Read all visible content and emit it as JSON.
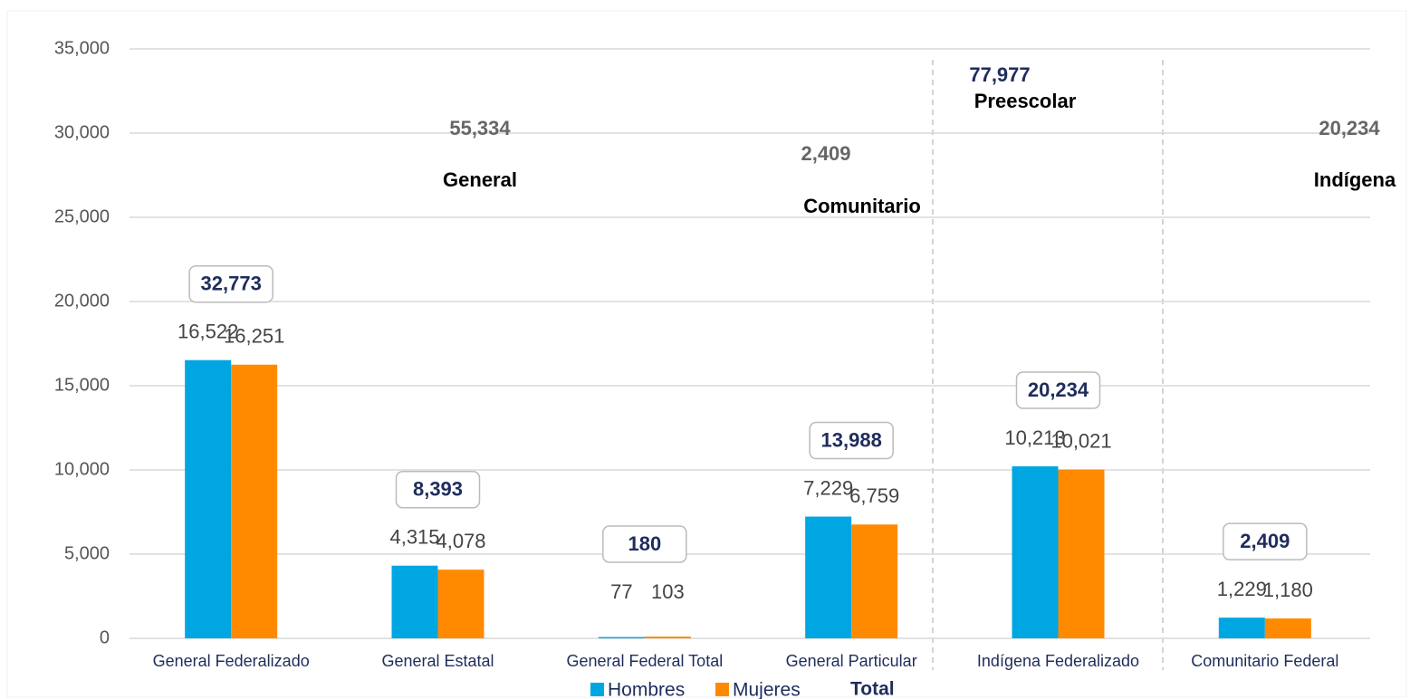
{
  "chart_data": {
    "type": "bar",
    "categories": [
      "General Federalizado",
      "General Estatal",
      "General Federal Total",
      "General Particular",
      "Indígena Federalizado",
      "Comunitario Federal"
    ],
    "series": [
      {
        "name": "Hombres",
        "color": "#00a6e2",
        "values": [
          16522,
          4315,
          77,
          7229,
          10213,
          1229
        ],
        "value_labels": [
          "16,522",
          "4,315",
          "77",
          "7,229",
          "10,213",
          "1,229"
        ]
      },
      {
        "name": "Mujeres",
        "color": "#ff8a00",
        "values": [
          16251,
          4078,
          103,
          6759,
          10021,
          1180
        ],
        "value_labels": [
          "16,251",
          "4,078",
          "103",
          "6,759",
          "10,021",
          "1,180"
        ]
      }
    ],
    "totals": {
      "name": "Total",
      "color": "#1f2d5c",
      "values": [
        32773,
        8393,
        180,
        13988,
        20234,
        2409
      ],
      "value_labels": [
        "32,773",
        "8,393",
        "180",
        "13,988",
        "20,234",
        "2,409"
      ]
    },
    "annotations": [
      {
        "value": 55334,
        "label": "55,334",
        "text": "General"
      },
      {
        "value": 2409,
        "label": "2,409",
        "text": "Comunitario"
      },
      {
        "value": 77977,
        "label": "77,977",
        "text": "Preescolar"
      },
      {
        "value": 20234,
        "label": "20,234",
        "text": "Indígena"
      }
    ],
    "ylim": [
      0,
      35000
    ],
    "yticks": [
      {
        "value": 0,
        "label": "0"
      },
      {
        "value": 5000,
        "label": "5,000"
      },
      {
        "value": 10000,
        "label": "10,000"
      },
      {
        "value": 15000,
        "label": "15,000"
      },
      {
        "value": 20000,
        "label": "20,000"
      },
      {
        "value": 25000,
        "label": "25,000"
      },
      {
        "value": 30000,
        "label": "30,000"
      },
      {
        "value": 35000,
        "label": "35,000"
      }
    ],
    "grid": true,
    "legend": "bottom"
  }
}
